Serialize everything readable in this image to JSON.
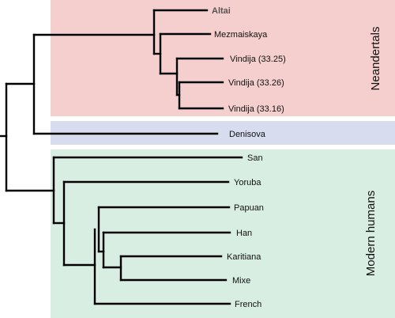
{
  "colors": {
    "neandertals_band": "#f5cfcd",
    "denisova_band": "#d7dcef",
    "modern_band": "#d8eee3",
    "branch": "#000000"
  },
  "groups": {
    "neandertals": "Neandertals",
    "modern_humans": "Modern humans"
  },
  "leaves": [
    {
      "label": "Altai",
      "group": "neandertals",
      "bold": true
    },
    {
      "label": "Mezmaiskaya",
      "group": "neandertals"
    },
    {
      "label": "Vindija (33.25)",
      "group": "neandertals"
    },
    {
      "label": "Vindija (33.26)",
      "group": "neandertals"
    },
    {
      "label": "Vindija (33.16)",
      "group": "neandertals"
    },
    {
      "label": "Denisova",
      "group": "denisova"
    },
    {
      "label": "San",
      "group": "modern_humans"
    },
    {
      "label": "Yoruba",
      "group": "modern_humans"
    },
    {
      "label": "Papuan",
      "group": "modern_humans"
    },
    {
      "label": "Han",
      "group": "modern_humans"
    },
    {
      "label": "Karitiana",
      "group": "modern_humans"
    },
    {
      "label": "Mixe",
      "group": "modern_humans"
    },
    {
      "label": "French",
      "group": "modern_humans"
    }
  ]
}
